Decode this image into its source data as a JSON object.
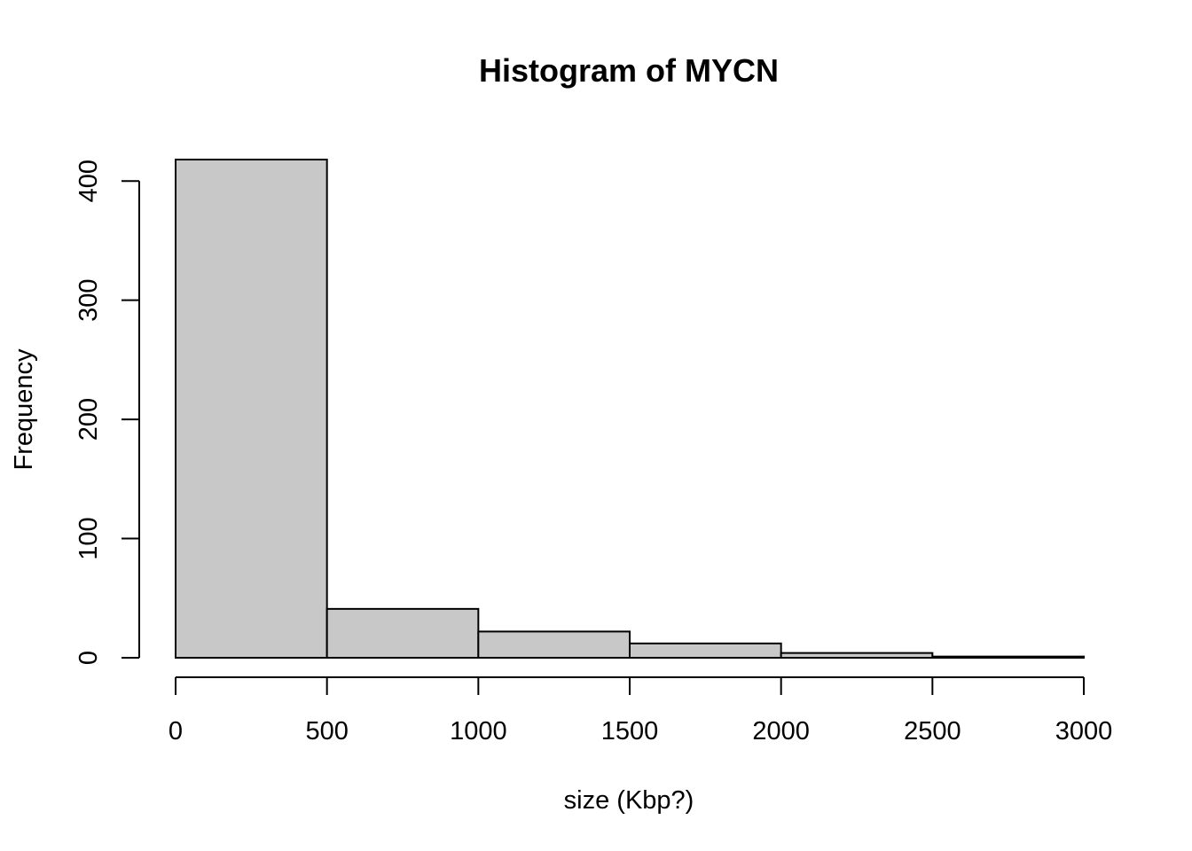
{
  "chart_data": {
    "type": "bar",
    "title": "Histogram of MYCN",
    "xlabel": "size (Kbp?)",
    "ylabel": "Frequency",
    "bins": [
      {
        "start": 0,
        "end": 500,
        "count": 418
      },
      {
        "start": 500,
        "end": 1000,
        "count": 41
      },
      {
        "start": 1000,
        "end": 1500,
        "count": 22
      },
      {
        "start": 1500,
        "end": 2000,
        "count": 12
      },
      {
        "start": 2000,
        "end": 2500,
        "count": 4
      },
      {
        "start": 2500,
        "end": 3000,
        "count": 1
      }
    ],
    "xlim": [
      0,
      3000
    ],
    "ylim": [
      0,
      418
    ],
    "xticks": [
      0,
      500,
      1000,
      1500,
      2000,
      2500,
      3000
    ],
    "xtick_labels": [
      "0",
      "500",
      "1000",
      "1500",
      "2000",
      "2500",
      "3000"
    ],
    "yticks": [
      0,
      100,
      200,
      300,
      400
    ],
    "ytick_labels": [
      "0",
      "100",
      "200",
      "300",
      "400"
    ],
    "grid": false,
    "bar_color": "#c8c8c8",
    "edge_color": "#000000"
  }
}
